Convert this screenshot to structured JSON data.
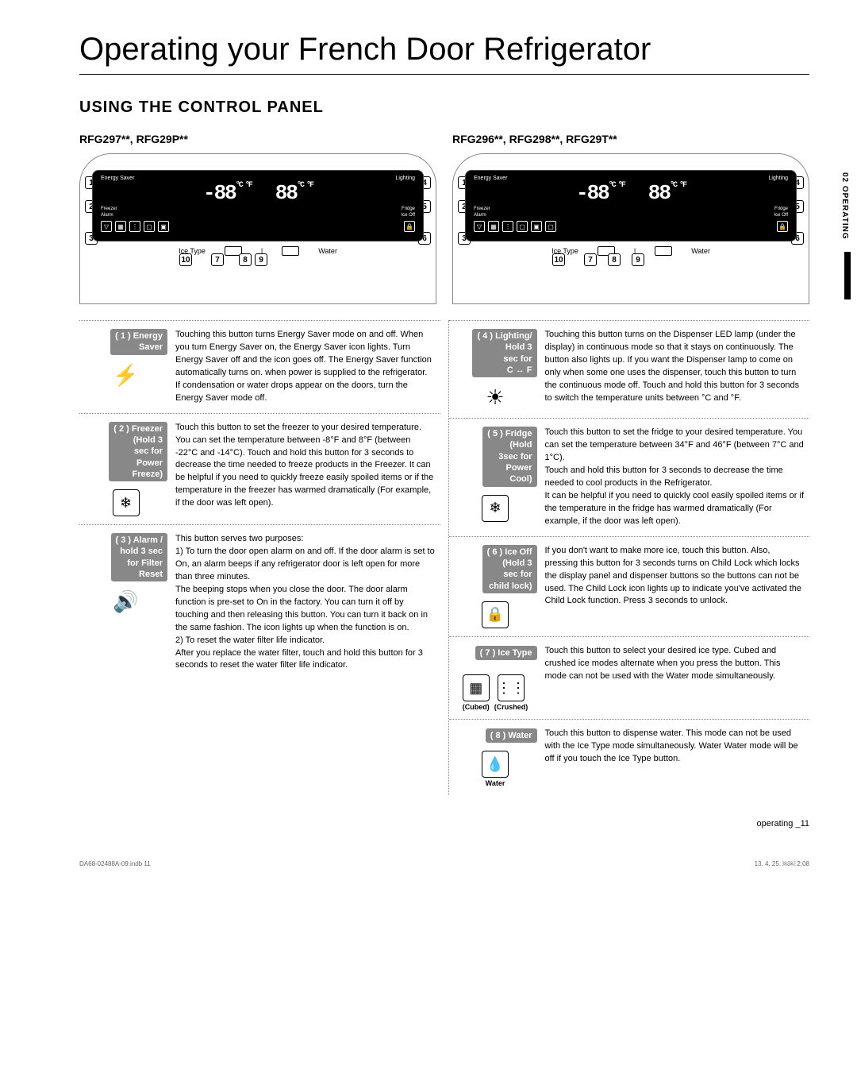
{
  "title": "Operating your French Door Refrigerator",
  "section": "USING THE CONTROL PANEL",
  "sideTab": "02 OPERATING",
  "panelLeft": {
    "heading": "RFG297**, RFG29P**",
    "energySaver": "Energy Saver",
    "lighting": "Lighting",
    "freezer": "Freezer",
    "fridge": "Fridge",
    "alarm": "Alarm",
    "iceOff": "Ice Off",
    "temp1": "-88",
    "temp2": "88",
    "unit": "°C °F",
    "filter": "Filter",
    "cubed": "Cubed",
    "crushed": "Crushed",
    "water": "Water",
    "iceOffSmall": "Ice Off",
    "iceType": "Ice Type",
    "waterLabel": "Water"
  },
  "panelRight": {
    "heading": "RFG296**, RFG298**, RFG29T**"
  },
  "callouts": [
    "1",
    "2",
    "3",
    "4",
    "5",
    "6",
    "7",
    "8",
    "9",
    "10"
  ],
  "features": {
    "left": [
      {
        "badge": "( 1 ) Energy\nSaver",
        "iconText": "⚡",
        "iconClass": "plug",
        "desc": "Touching this button turns Energy Saver mode on and off. When you turn Energy Saver on, the Energy Saver icon lights. Turn Energy Saver off and the icon goes off. The Energy Saver function automatically turns on. when power is supplied to the refrigerator.\nIf condensation or water drops appear on the doors, turn the Energy Saver mode off."
      },
      {
        "badge": "( 2 ) Freezer\n(Hold 3\nsec for\nPower\nFreeze)",
        "iconText": "❄",
        "iconClass": "snowflake boxed",
        "desc": "Touch this button to set the freezer to your desired temperature.\nYou can set the temperature between -8°F and 8°F (between -22°C and -14°C). Touch and hold this button for 3 seconds to decrease the time needed to freeze products in the Freezer. It can be helpful if you need to quickly freeze easily spoiled items or if the temperature in the freezer has warmed dramatically (For example, if the door was left open)."
      },
      {
        "badge": "( 3 ) Alarm /\nhold 3 sec\nfor Filter\nReset",
        "iconText": "🔊",
        "iconClass": "speaker",
        "desc": "This button serves two purposes:\n1) To turn the door open alarm on and off. If the door alarm is set to On, an alarm beeps if any refrigerator door is left open for more than three minutes.\nThe beeping stops when you close the door. The door alarm function is pre-set to On in the factory. You can turn it off by touching and then releasing this button. You can turn it back on in the same fashion. The icon lights up when the function is on.\n2) To reset the water filter life indicator.\nAfter you replace the water filter, touch and hold this button for 3 seconds to reset the water filter life indicator."
      }
    ],
    "right": [
      {
        "badge": "( 4 ) Lighting/\nHold 3\nsec for\nC ↔ F",
        "iconText": "☀",
        "iconClass": "sun",
        "desc": "Touching this button turns on the Dispenser LED lamp (under the display) in continuous mode so that it stays on continuously. The button also lights up. If you want the Dispenser lamp to come on only when some one uses the dispenser, touch this button to turn the continuous mode off. Touch and hold this button for 3 seconds to switch the temperature units between °C and °F."
      },
      {
        "badge": "( 5 ) Fridge\n(Hold\n3sec for\nPower\nCool)",
        "iconText": "❄",
        "iconClass": "snowflake boxed",
        "desc": "Touch this button to set the fridge to your desired temperature. You can set the temperature between 34°F and 46°F (between 7°C and 1°C).\nTouch and hold this button for 3 seconds to decrease the time needed to cool products in the Refrigerator.\nIt can be helpful if you need to quickly cool easily spoiled items or if the temperature in the fridge has warmed dramatically (For example, if the door was left open)."
      },
      {
        "badge": "( 6 ) Ice Off\n(Hold 3\nsec for\nchild lock)",
        "iconText": "🔒",
        "iconClass": "lock boxed",
        "desc": "If you don't want to make more ice, touch this button. Also, pressing this button for 3 seconds turns on Child Lock which locks the display panel and dispenser buttons so the buttons can not be used. The Child Lock icon lights up to indicate you've activated the Child Lock function. Press 3 seconds to unlock."
      },
      {
        "badge": "( 7 ) Ice Type",
        "dualIcons": true,
        "icon1": "▦",
        "icon2": "⋮⋮",
        "sub1": "(Cubed)",
        "sub2": "(Crushed)",
        "desc": "Touch this button to select your desired ice type. Cubed and crushed ice modes alternate when you press the button. This mode can not be used with the Water mode simultaneously."
      },
      {
        "badge": "( 8 ) Water",
        "iconText": "💧",
        "iconClass": "water boxed",
        "subLabel": "Water",
        "desc": "Touch this button to dispense water. This mode can not be used with the Ice Type mode simultaneously. Water Water mode will be off if you touch the Ice Type button."
      }
    ]
  },
  "footer": {
    "right": "operating _11",
    "leftSmall": "DA68-02488A-09.indb   11",
    "rightSmall": "13. 4. 25.   ￼￼ 2:08"
  }
}
